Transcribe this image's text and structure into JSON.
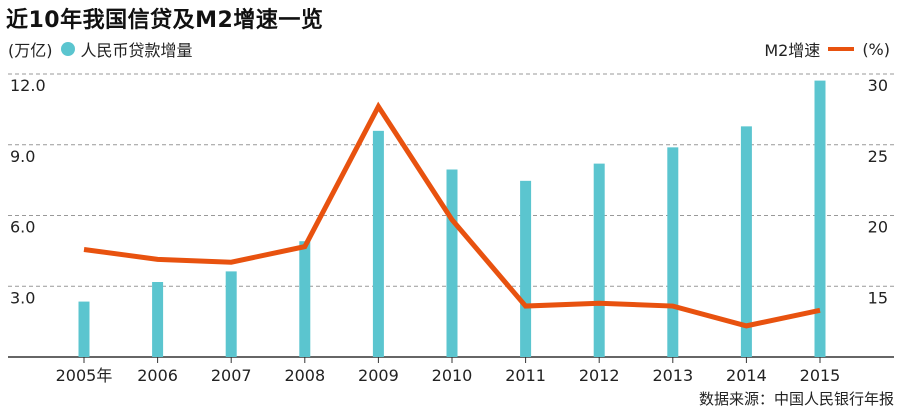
{
  "title": "近10年我国信贷及M2增速一览",
  "legend": {
    "left_unit": "(万亿)",
    "bar_series": "人民币贷款增量",
    "line_series": "M2增速",
    "right_unit": "(%)"
  },
  "source": "数据来源：中国人民银行年报",
  "colors": {
    "bar": "#5bc5cf",
    "line": "#e8520f",
    "grid": "#999999",
    "axis": "#333333"
  },
  "chart_data": {
    "type": "bar",
    "categories": [
      "2005年",
      "2006",
      "2007",
      "2008",
      "2009",
      "2010",
      "2011",
      "2012",
      "2013",
      "2014",
      "2015"
    ],
    "series": [
      {
        "name": "人民币贷款增量",
        "type": "bar",
        "axis": "left",
        "values": [
          2.35,
          3.18,
          3.63,
          4.91,
          9.59,
          7.95,
          7.47,
          8.2,
          8.89,
          9.78,
          11.72
        ]
      },
      {
        "name": "M2增速",
        "type": "line",
        "axis": "right",
        "values": [
          17.6,
          16.9,
          16.7,
          17.8,
          27.7,
          19.7,
          13.6,
          13.8,
          13.6,
          12.2,
          13.3
        ]
      }
    ],
    "y_left": {
      "lim": [
        0,
        12.0
      ],
      "ticks": [
        "3.0",
        "6.0",
        "9.0",
        "12.0"
      ]
    },
    "y_right": {
      "lim": [
        10,
        30
      ],
      "ticks": [
        "15",
        "20",
        "25",
        "30"
      ]
    },
    "grid": true
  }
}
